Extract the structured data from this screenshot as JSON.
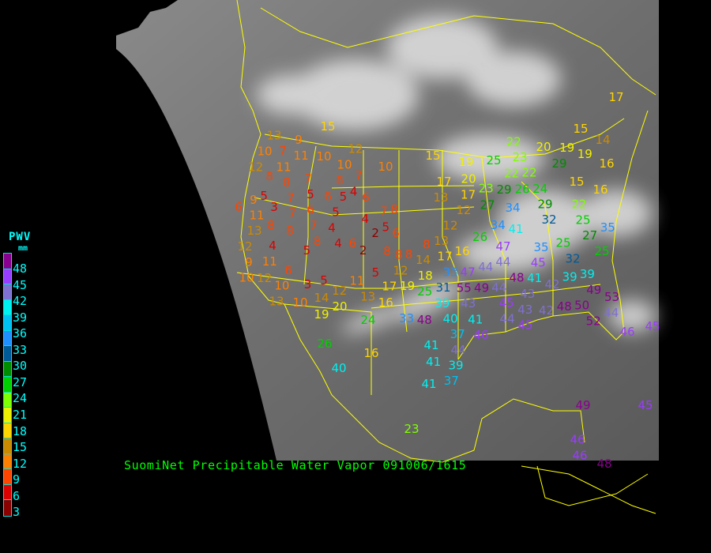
{
  "legend": {
    "title": "PWV",
    "unit": "mm",
    "labels": [
      "48",
      "45",
      "42",
      "39",
      "36",
      "33",
      "30",
      "27",
      "24",
      "21",
      "18",
      "15",
      "12",
      "9",
      "6",
      "3"
    ],
    "colors": [
      "#8a008f",
      "#9a3cff",
      "#8070d0",
      "#00f0f0",
      "#00c0f0",
      "#2090ff",
      "#005a98",
      "#008c00",
      "#00d000",
      "#80ff00",
      "#f0f000",
      "#ffd400",
      "#cc8a00",
      "#ff8000",
      "#ff4400",
      "#dc0000",
      "#8c0000"
    ]
  },
  "caption": "SuomiNet Precipitable Water Vapor 091006/1615",
  "stations": {
    "values": [
      15,
      13,
      9,
      10,
      7,
      11,
      10,
      12,
      10,
      10,
      12,
      11,
      8,
      8,
      7,
      8,
      7,
      4,
      5,
      7,
      5,
      6,
      5,
      6,
      6,
      9,
      3,
      7,
      6,
      5,
      7,
      8,
      11,
      8,
      7,
      4,
      4,
      5,
      13,
      8,
      8,
      2,
      6,
      12,
      4,
      4,
      6,
      2,
      8,
      5,
      11,
      9,
      8,
      8,
      10,
      12,
      6,
      3,
      5,
      10,
      13,
      5,
      12,
      11,
      14,
      12,
      13,
      17,
      19,
      10,
      19,
      20,
      16,
      24,
      15,
      19,
      22,
      25,
      23,
      22,
      22,
      20,
      19,
      19,
      29,
      16,
      17,
      13,
      20,
      23,
      29,
      26,
      24,
      15,
      16,
      12,
      17,
      27,
      34,
      29,
      32,
      22,
      25,
      34,
      41,
      26,
      27,
      35,
      12,
      16,
      8,
      13,
      14,
      17,
      47,
      44,
      44,
      45,
      35,
      25,
      32,
      25,
      18,
      33,
      47,
      48,
      41,
      39,
      39,
      25,
      31,
      39,
      55,
      49,
      44,
      42,
      45,
      43,
      43,
      49,
      42,
      48,
      50,
      53,
      44,
      33,
      48,
      43,
      40,
      41,
      37,
      46,
      44,
      45,
      52,
      41,
      44,
      41,
      39,
      37,
      41,
      26,
      40,
      16,
      23,
      46,
      45,
      49,
      46,
      46,
      48,
      45,
      17,
      15,
      14
    ]
  }
}
